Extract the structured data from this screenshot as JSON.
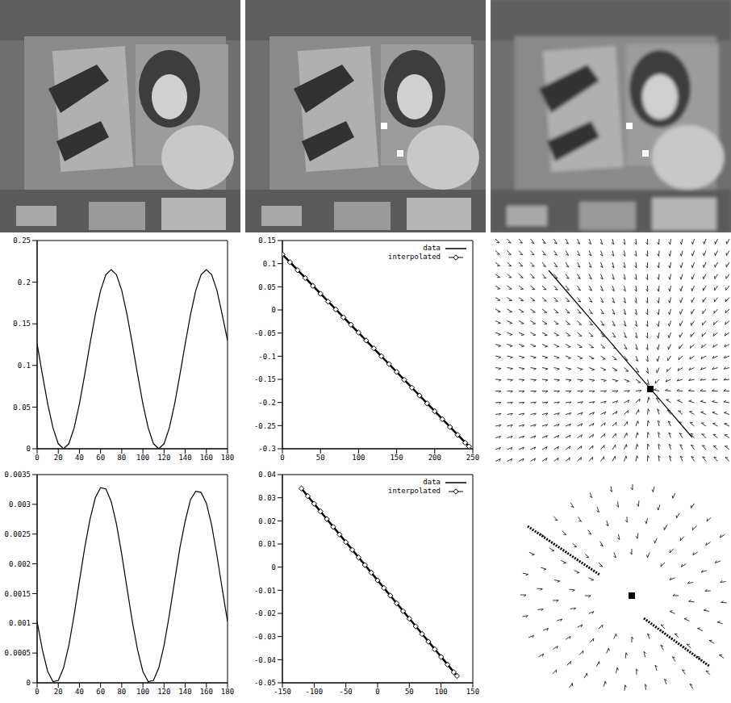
{
  "chart_data": [
    {
      "type": "line",
      "xlim": [
        0,
        180
      ],
      "xticks": [
        0,
        20,
        40,
        60,
        80,
        100,
        120,
        140,
        160,
        180
      ],
      "ylim": [
        0,
        0.25
      ],
      "yticks": [
        0,
        0.05,
        0.1,
        0.15,
        0.2,
        0.25
      ],
      "color": "#000000",
      "x": [
        0,
        5,
        10,
        15,
        20,
        25,
        30,
        35,
        40,
        45,
        50,
        55,
        60,
        65,
        70,
        75,
        80,
        85,
        90,
        95,
        100,
        105,
        110,
        115,
        120,
        125,
        130,
        135,
        140,
        145,
        150,
        155,
        160,
        165,
        170,
        175,
        180
      ],
      "values": [
        0.126,
        0.089,
        0.054,
        0.025,
        0.006,
        0,
        0.006,
        0.025,
        0.054,
        0.089,
        0.126,
        0.161,
        0.19,
        0.209,
        0.215,
        0.209,
        0.19,
        0.161,
        0.126,
        0.089,
        0.054,
        0.025,
        0.006,
        0,
        0.006,
        0.025,
        0.054,
        0.089,
        0.126,
        0.161,
        0.19,
        0.209,
        0.215,
        0.209,
        0.19,
        0.161,
        0.13
      ]
    },
    {
      "type": "line",
      "xlim": [
        0,
        250
      ],
      "xticks": [
        0,
        50,
        100,
        150,
        200,
        250
      ],
      "ylim": [
        -0.3,
        0.15
      ],
      "yticks": [
        -0.3,
        -0.25,
        -0.2,
        -0.15,
        -0.1,
        -0.05,
        0,
        0.05,
        0.1,
        0.15
      ],
      "legend": "upper right",
      "series": [
        {
          "name": "data",
          "color": "#000000",
          "line_style": "solid",
          "marker": "none",
          "x": [
            0,
            245
          ],
          "values": [
            0.12,
            -0.295
          ]
        },
        {
          "name": "interpolated",
          "color": "#000000",
          "line_style": "none",
          "marker": "diamond",
          "x": [
            0,
            10,
            20,
            30,
            40,
            50,
            60,
            70,
            80,
            90,
            100,
            110,
            120,
            130,
            140,
            150,
            160,
            170,
            180,
            190,
            200,
            210,
            220,
            230,
            240,
            245
          ],
          "values": [
            0.12,
            0.103,
            0.086,
            0.069,
            0.052,
            0.035,
            0.018,
            0.001,
            -0.016,
            -0.032,
            -0.049,
            -0.066,
            -0.083,
            -0.1,
            -0.117,
            -0.134,
            -0.151,
            -0.168,
            -0.185,
            -0.202,
            -0.219,
            -0.236,
            -0.253,
            -0.27,
            -0.287,
            -0.295
          ]
        }
      ]
    },
    {
      "type": "line",
      "xlim": [
        0,
        180
      ],
      "xticks": [
        0,
        20,
        40,
        60,
        80,
        100,
        120,
        140,
        160,
        180
      ],
      "ylim": [
        0,
        0.0035
      ],
      "yticks": [
        0,
        0.0005,
        0.001,
        0.0015,
        0.002,
        0.0025,
        0.003,
        0.0035
      ],
      "color": "#000000",
      "x": [
        0,
        5,
        10,
        15,
        20,
        25,
        30,
        35,
        40,
        45,
        50,
        55,
        60,
        65,
        70,
        75,
        80,
        85,
        90,
        95,
        100,
        105,
        110,
        115,
        120,
        125,
        130,
        135,
        140,
        145,
        150,
        155,
        160,
        165,
        170,
        175,
        180
      ],
      "values": [
        0.00103,
        0.00055,
        0.00019,
        2e-05,
        4e-05,
        0.00025,
        0.00063,
        0.00114,
        0.00171,
        0.00227,
        0.00275,
        0.00311,
        0.00328,
        0.00326,
        0.00305,
        0.00267,
        0.00216,
        0.00159,
        0.00103,
        0.00055,
        0.00019,
        2e-05,
        4e-05,
        0.00025,
        0.00063,
        0.00114,
        0.00171,
        0.00227,
        0.00272,
        0.00308,
        0.00322,
        0.0032,
        0.00302,
        0.00265,
        0.00214,
        0.00158,
        0.00103
      ]
    },
    {
      "type": "line",
      "xlim": [
        -150,
        150
      ],
      "xticks": [
        -150,
        -100,
        -50,
        0,
        50,
        100,
        150
      ],
      "ylim": [
        -0.05,
        0.04
      ],
      "yticks": [
        -0.05,
        -0.04,
        -0.03,
        -0.02,
        -0.01,
        0,
        0.01,
        0.02,
        0.03,
        0.04
      ],
      "legend": "upper right",
      "series": [
        {
          "name": "data",
          "color": "#000000",
          "line_style": "solid",
          "marker": "none",
          "x": [
            -120,
            125
          ],
          "values": [
            0.034,
            -0.047
          ]
        },
        {
          "name": "interpolated",
          "color": "#000000",
          "line_style": "none",
          "marker": "diamond",
          "x": [
            -120,
            -110,
            -100,
            -90,
            -80,
            -70,
            -60,
            -50,
            -40,
            -30,
            -20,
            -10,
            0,
            10,
            20,
            30,
            40,
            50,
            60,
            70,
            80,
            90,
            100,
            110,
            120,
            125
          ],
          "values": [
            0.034,
            0.0307,
            0.0274,
            0.0241,
            0.0208,
            0.0174,
            0.0141,
            0.0108,
            0.0075,
            0.0042,
            0.0009,
            -0.0024,
            -0.0057,
            -0.009,
            -0.0123,
            -0.0156,
            -0.019,
            -0.0223,
            -0.0256,
            -0.0289,
            -0.0322,
            -0.0355,
            -0.0388,
            -0.0421,
            -0.0454,
            -0.047
          ]
        }
      ]
    }
  ]
}
